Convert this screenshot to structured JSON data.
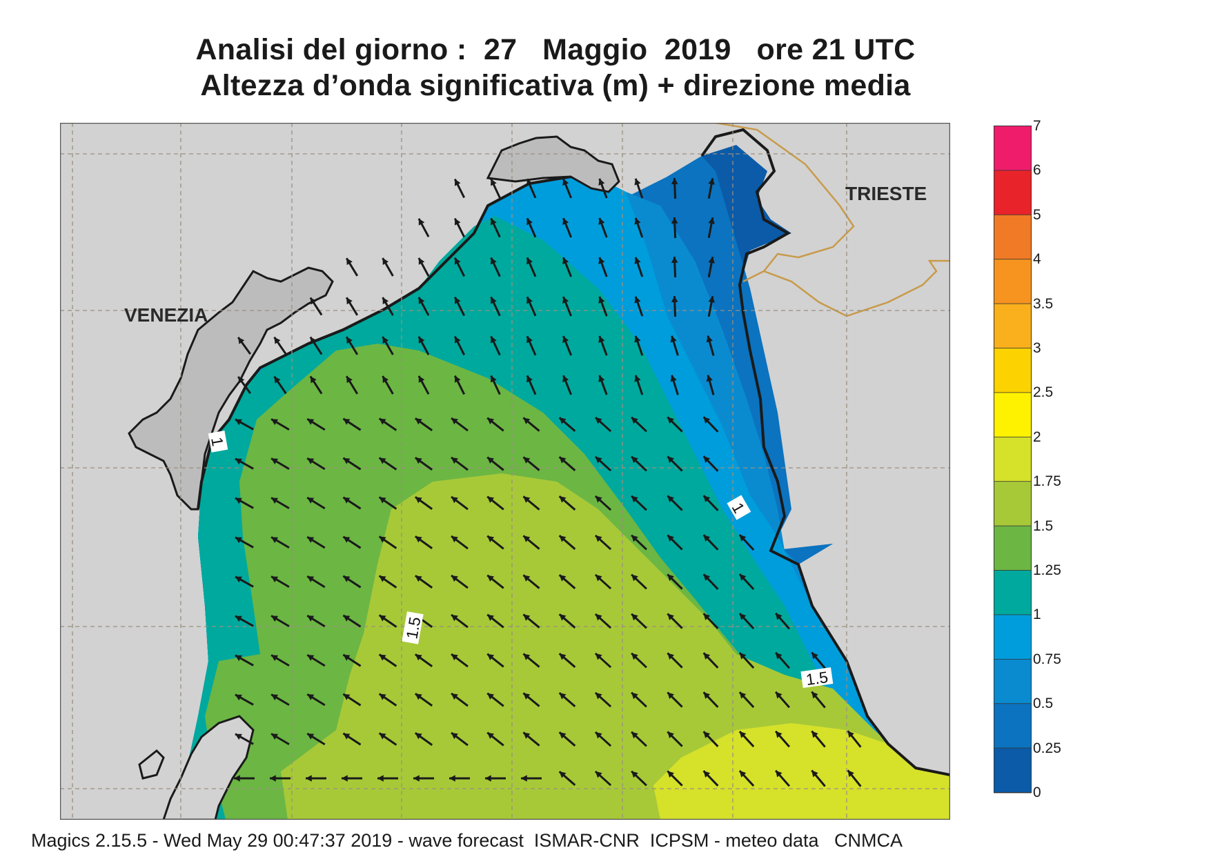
{
  "title_line1": "Analisi del giorno :  27   Maggio  2019   ore 21 UTC",
  "title_line2": "Altezza d’onda significativa (m) + direzione media",
  "footer": "Magics 2.15.5 - Wed May 29 00:47:37 2019 - wave forecast  ISMAR-CNR  ICPSM - meteo data   CNMCA",
  "cities": [
    "VENEZIA",
    "TRIESTE"
  ],
  "contour_labels": [
    "1",
    "1",
    "1.5",
    "1.5"
  ],
  "legend": {
    "labels": [
      "7",
      "6",
      "5",
      "4",
      "3.5",
      "3",
      "2.5",
      "2",
      "1.75",
      "1.5",
      "1.25",
      "1",
      "0.75",
      "0.5",
      "0.25",
      "0"
    ],
    "colors": [
      "#ee1c6b",
      "#e8232a",
      "#f07a25",
      "#f6941f",
      "#f9b01c",
      "#fcd300",
      "#fff200",
      "#d6e12a",
      "#a7c938",
      "#6cb644",
      "#00a99d",
      "#009ddc",
      "#0a8bd0",
      "#0b73bf",
      "#0b5ba8"
    ]
  },
  "colors": {
    "land": "#d2d2d2",
    "venice_land": "#bcbcbc",
    "coast": "#1a1a1a",
    "border": "#c89a4a",
    "grid": "#9a8f80"
  },
  "arrow_field": {
    "description_free": true,
    "dominant_direction": "northwest"
  }
}
